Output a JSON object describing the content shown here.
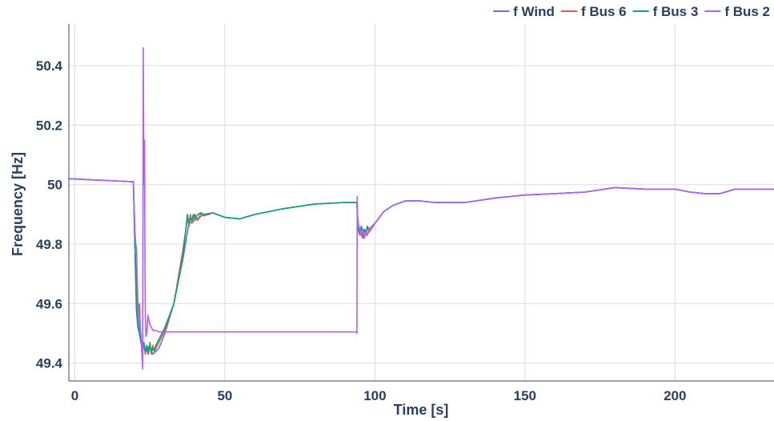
{
  "chart_data": {
    "type": "line",
    "title": "",
    "xlabel": "Time [s]",
    "ylabel": "Frequency [Hz]",
    "xlim": [
      -2,
      233
    ],
    "ylim": [
      49.34,
      50.54
    ],
    "grid": true,
    "legend_position": "top-right",
    "x_ticks": [
      {
        "value": 0,
        "label": "0"
      },
      {
        "value": 50,
        "label": "50"
      },
      {
        "value": 100,
        "label": "100"
      },
      {
        "value": 150,
        "label": "150"
      },
      {
        "value": 200,
        "label": "200"
      }
    ],
    "y_ticks": [
      {
        "value": 49.4,
        "label": "49.4"
      },
      {
        "value": 49.6,
        "label": "49.6"
      },
      {
        "value": 49.8,
        "label": "49.8"
      },
      {
        "value": 50.0,
        "label": "50"
      },
      {
        "value": 50.2,
        "label": "50.2"
      },
      {
        "value": 50.4,
        "label": "50.4"
      }
    ],
    "series": [
      {
        "name": "f Wind",
        "color": "#636efa",
        "x": [
          -2,
          19,
          19.5,
          20,
          21,
          22,
          23,
          24,
          25,
          26,
          28,
          30,
          33,
          36,
          38,
          40,
          43,
          46,
          50,
          55,
          60,
          70,
          80,
          90,
          94,
          94.3,
          95,
          96,
          97,
          98,
          100,
          103,
          106,
          110,
          115,
          120,
          130,
          140,
          150,
          160,
          170,
          180,
          190,
          200,
          205,
          210,
          215,
          220,
          233
        ],
        "y": [
          50.02,
          50.01,
          50.01,
          49.8,
          49.55,
          49.48,
          49.45,
          49.44,
          49.46,
          49.43,
          49.45,
          49.5,
          49.6,
          49.75,
          49.87,
          49.88,
          49.9,
          49.905,
          49.89,
          49.885,
          49.9,
          49.92,
          49.935,
          49.94,
          49.94,
          49.85,
          49.84,
          49.82,
          49.83,
          49.84,
          49.87,
          49.91,
          49.93,
          49.945,
          49.945,
          49.94,
          49.94,
          49.955,
          49.965,
          49.97,
          49.975,
          49.99,
          49.985,
          49.985,
          49.975,
          49.97,
          49.97,
          49.985,
          49.985
        ]
      },
      {
        "name": "f Bus 6",
        "color": "#ef553b",
        "x": [
          -2,
          19,
          19.5,
          20,
          20.5,
          21,
          21.5,
          22,
          23,
          23.5,
          24,
          24.5,
          25,
          25.5,
          26,
          26.5,
          27,
          28,
          30,
          33,
          36,
          37,
          37.5,
          38,
          38.5,
          39,
          40,
          41,
          42,
          43,
          46,
          50,
          55,
          60,
          70,
          80,
          90,
          94,
          94.3,
          95,
          95.5,
          96,
          96.5,
          97,
          97.5,
          98,
          100,
          103,
          106,
          110,
          115,
          120,
          130,
          140,
          150,
          160,
          170,
          180,
          190,
          200,
          205,
          210,
          215,
          220,
          233
        ],
        "y": [
          50.02,
          50.01,
          50.01,
          49.8,
          49.6,
          49.56,
          49.6,
          49.48,
          49.46,
          49.43,
          49.46,
          49.43,
          49.47,
          49.43,
          49.46,
          49.44,
          49.45,
          49.47,
          49.51,
          49.6,
          49.78,
          49.85,
          49.89,
          49.86,
          49.9,
          49.87,
          49.9,
          49.88,
          49.905,
          49.895,
          49.905,
          49.89,
          49.885,
          49.9,
          49.92,
          49.935,
          49.94,
          49.94,
          49.85,
          49.83,
          49.86,
          49.82,
          49.85,
          49.83,
          49.86,
          49.84,
          49.87,
          49.91,
          49.93,
          49.945,
          49.945,
          49.94,
          49.94,
          49.955,
          49.965,
          49.97,
          49.975,
          49.99,
          49.985,
          49.985,
          49.975,
          49.97,
          49.97,
          49.985,
          49.985
        ]
      },
      {
        "name": "f Bus 3",
        "color": "#00a57e",
        "x": [
          -2,
          19,
          19.5,
          20,
          20.5,
          21,
          21.5,
          22,
          22.5,
          23,
          23.5,
          24,
          24.5,
          25,
          25.5,
          26,
          26.5,
          27,
          28,
          30,
          33,
          36,
          37,
          37.5,
          38,
          38.5,
          39,
          39.5,
          40,
          41,
          42,
          43,
          46,
          50,
          55,
          60,
          70,
          80,
          90,
          94,
          94.3,
          95,
          95.5,
          96,
          96.5,
          97,
          97.5,
          98,
          100,
          103,
          106,
          110,
          115,
          120,
          130,
          140,
          150,
          160,
          170,
          180,
          190,
          200,
          205,
          210,
          215,
          220,
          233
        ],
        "y": [
          50.02,
          50.01,
          50.01,
          49.8,
          49.58,
          49.52,
          49.5,
          49.47,
          49.45,
          49.47,
          49.44,
          49.46,
          49.43,
          49.46,
          49.44,
          49.45,
          49.44,
          49.46,
          49.48,
          49.52,
          49.6,
          49.76,
          49.85,
          49.9,
          49.87,
          49.89,
          49.88,
          49.9,
          49.885,
          49.9,
          49.905,
          49.9,
          49.905,
          49.89,
          49.885,
          49.9,
          49.92,
          49.935,
          49.94,
          49.94,
          49.86,
          49.84,
          49.86,
          49.83,
          49.85,
          49.84,
          49.86,
          49.85,
          49.87,
          49.91,
          49.93,
          49.945,
          49.945,
          49.94,
          49.94,
          49.955,
          49.965,
          49.97,
          49.975,
          49.99,
          49.985,
          49.985,
          49.975,
          49.97,
          49.97,
          49.985,
          49.985
        ]
      },
      {
        "name": "f Bus 2",
        "color": "#ab63fa",
        "x": [
          -2,
          19,
          19.5,
          20,
          20.3,
          20.6,
          21,
          21.5,
          22,
          22.6,
          22.8,
          23,
          23.2,
          23.4,
          23.5,
          23.7,
          24,
          24.3,
          24.6,
          25,
          25.5,
          26,
          27,
          28,
          30,
          35,
          50,
          70,
          93.9,
          94,
          94.1,
          94.2,
          94.4,
          94.6,
          95,
          95.5,
          96,
          96.5,
          97,
          97.5,
          98,
          100,
          103,
          106,
          110,
          115,
          120,
          130,
          140,
          150,
          160,
          170,
          180,
          190,
          200,
          205,
          210,
          215,
          220,
          233
        ],
        "y": [
          50.02,
          50.01,
          50.01,
          49.85,
          49.8,
          49.78,
          49.6,
          49.55,
          49.5,
          49.38,
          50.46,
          50.0,
          50.15,
          49.7,
          49.55,
          49.49,
          49.5,
          49.56,
          49.55,
          49.53,
          49.52,
          49.51,
          49.51,
          49.505,
          49.505,
          49.505,
          49.505,
          49.505,
          49.505,
          49.5,
          49.96,
          49.9,
          49.88,
          49.86,
          49.85,
          49.83,
          49.85,
          49.82,
          49.84,
          49.83,
          49.85,
          49.87,
          49.91,
          49.93,
          49.945,
          49.945,
          49.94,
          49.94,
          49.955,
          49.965,
          49.97,
          49.975,
          49.99,
          49.985,
          49.985,
          49.975,
          49.97,
          49.97,
          49.985,
          49.985
        ]
      }
    ]
  }
}
